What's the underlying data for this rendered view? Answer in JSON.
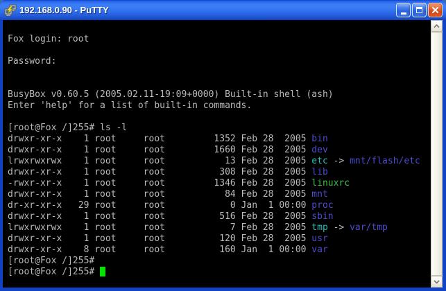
{
  "window": {
    "title": "192.168.0.90 - PuTTY",
    "icons": {
      "app": "putty-icon",
      "minimize": "minimize-icon",
      "maximize": "maximize-icon",
      "close": "close-icon",
      "scroll_up": "chevron-up-icon",
      "scroll_down": "chevron-down-icon"
    }
  },
  "colors": {
    "bg": "#000000",
    "fg": "#bbbbbb",
    "dir": "#4c4ccc",
    "link": "#2dbdb2",
    "exec": "#44bb44",
    "cursor": "#00e400",
    "titlebar_accent": "#3c7ef6",
    "close_accent": "#d2491c"
  },
  "terminal": {
    "lines": [
      [],
      [
        {
          "t": "Fox login: root",
          "c": "fg"
        }
      ],
      [],
      [
        {
          "t": "Password:",
          "c": "fg"
        }
      ],
      [],
      [],
      [
        {
          "t": "BusyBox v0.60.5 (2005.02.11-19:09+0000) Built-in shell (ash)",
          "c": "fg"
        }
      ],
      [
        {
          "t": "Enter 'help' for a list of built-in commands.",
          "c": "fg"
        }
      ],
      [],
      [
        {
          "t": "[root@Fox /]255# ls -l",
          "c": "fg"
        }
      ],
      [
        {
          "t": "drwxr-xr-x    1 root     root         1352 Feb 28  2005 ",
          "c": "fg"
        },
        {
          "t": "bin",
          "c": "dir"
        }
      ],
      [
        {
          "t": "drwxr-xr-x    1 root     root         1660 Feb 28  2005 ",
          "c": "fg"
        },
        {
          "t": "dev",
          "c": "dir"
        }
      ],
      [
        {
          "t": "lrwxrwxrwx    1 root     root           13 Feb 28  2005 ",
          "c": "fg"
        },
        {
          "t": "etc",
          "c": "link"
        },
        {
          "t": " -> ",
          "c": "fg"
        },
        {
          "t": "mnt/flash/etc",
          "c": "dir"
        }
      ],
      [
        {
          "t": "drwxr-xr-x    1 root     root          308 Feb 28  2005 ",
          "c": "fg"
        },
        {
          "t": "lib",
          "c": "dir"
        }
      ],
      [
        {
          "t": "-rwxr-xr-x    1 root     root         1346 Feb 28  2005 ",
          "c": "fg"
        },
        {
          "t": "linuxrc",
          "c": "exec"
        }
      ],
      [
        {
          "t": "drwxr-xr-x    1 root     root           84 Feb 28  2005 ",
          "c": "fg"
        },
        {
          "t": "mnt",
          "c": "dir"
        }
      ],
      [
        {
          "t": "dr-xr-xr-x   29 root     root            0 Jan  1 00:00 ",
          "c": "fg"
        },
        {
          "t": "proc",
          "c": "dir"
        }
      ],
      [
        {
          "t": "drwxr-xr-x    1 root     root          516 Feb 28  2005 ",
          "c": "fg"
        },
        {
          "t": "sbin",
          "c": "dir"
        }
      ],
      [
        {
          "t": "lrwxrwxrwx    1 root     root            7 Feb 28  2005 ",
          "c": "fg"
        },
        {
          "t": "tmp",
          "c": "link"
        },
        {
          "t": " -> ",
          "c": "fg"
        },
        {
          "t": "var/tmp",
          "c": "dir"
        }
      ],
      [
        {
          "t": "drwxr-xr-x    1 root     root          120 Feb 28  2005 ",
          "c": "fg"
        },
        {
          "t": "usr",
          "c": "dir"
        }
      ],
      [
        {
          "t": "drwxr-xr-x    8 root     root          160 Jan  1 00:00 ",
          "c": "fg"
        },
        {
          "t": "var",
          "c": "dir"
        }
      ],
      [
        {
          "t": "[root@Fox /]255#",
          "c": "fg"
        }
      ],
      [
        {
          "t": "[root@Fox /]255# ",
          "c": "fg"
        },
        {
          "cursor": true
        }
      ],
      []
    ]
  }
}
